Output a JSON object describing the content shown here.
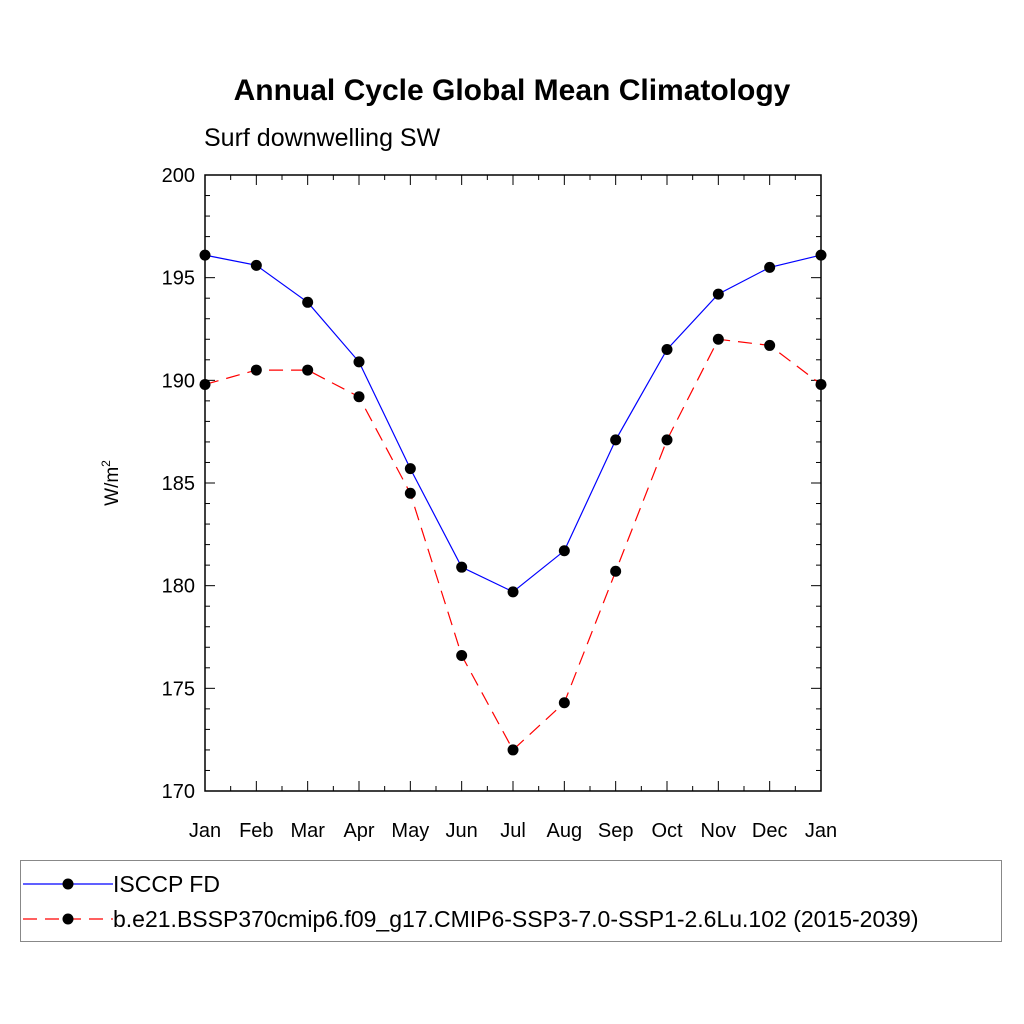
{
  "chart_data": {
    "type": "line",
    "title": "Annual Cycle Global Mean Climatology",
    "subtitle": "Surf downwelling SW",
    "ylabel": "W/m",
    "ylabel_sup": "2",
    "xlabel": "",
    "categories": [
      "Jan",
      "Feb",
      "Mar",
      "Apr",
      "May",
      "Jun",
      "Jul",
      "Aug",
      "Sep",
      "Oct",
      "Nov",
      "Dec",
      "Jan"
    ],
    "ylim": [
      170,
      200
    ],
    "yticks": [
      "170",
      "175",
      "180",
      "185",
      "190",
      "195",
      "200"
    ],
    "grid": false,
    "legend_position": "bottom",
    "series": [
      {
        "name": "ISCCP FD",
        "color": "#0000ff",
        "dash": "solid",
        "values": [
          196.1,
          195.6,
          193.8,
          190.9,
          185.7,
          180.9,
          179.7,
          181.7,
          187.1,
          191.5,
          194.2,
          195.5,
          196.1
        ]
      },
      {
        "name": "b.e21.BSSP370cmip6.f09_g17.CMIP6-SSP3-7.0-SSP1-2.6Lu.102 (2015-2039)",
        "color": "#ff0000",
        "dash": "dashed",
        "values": [
          189.8,
          190.5,
          190.5,
          189.2,
          184.5,
          176.6,
          172.0,
          174.3,
          180.7,
          187.1,
          192.0,
          191.7,
          189.8
        ]
      }
    ]
  }
}
